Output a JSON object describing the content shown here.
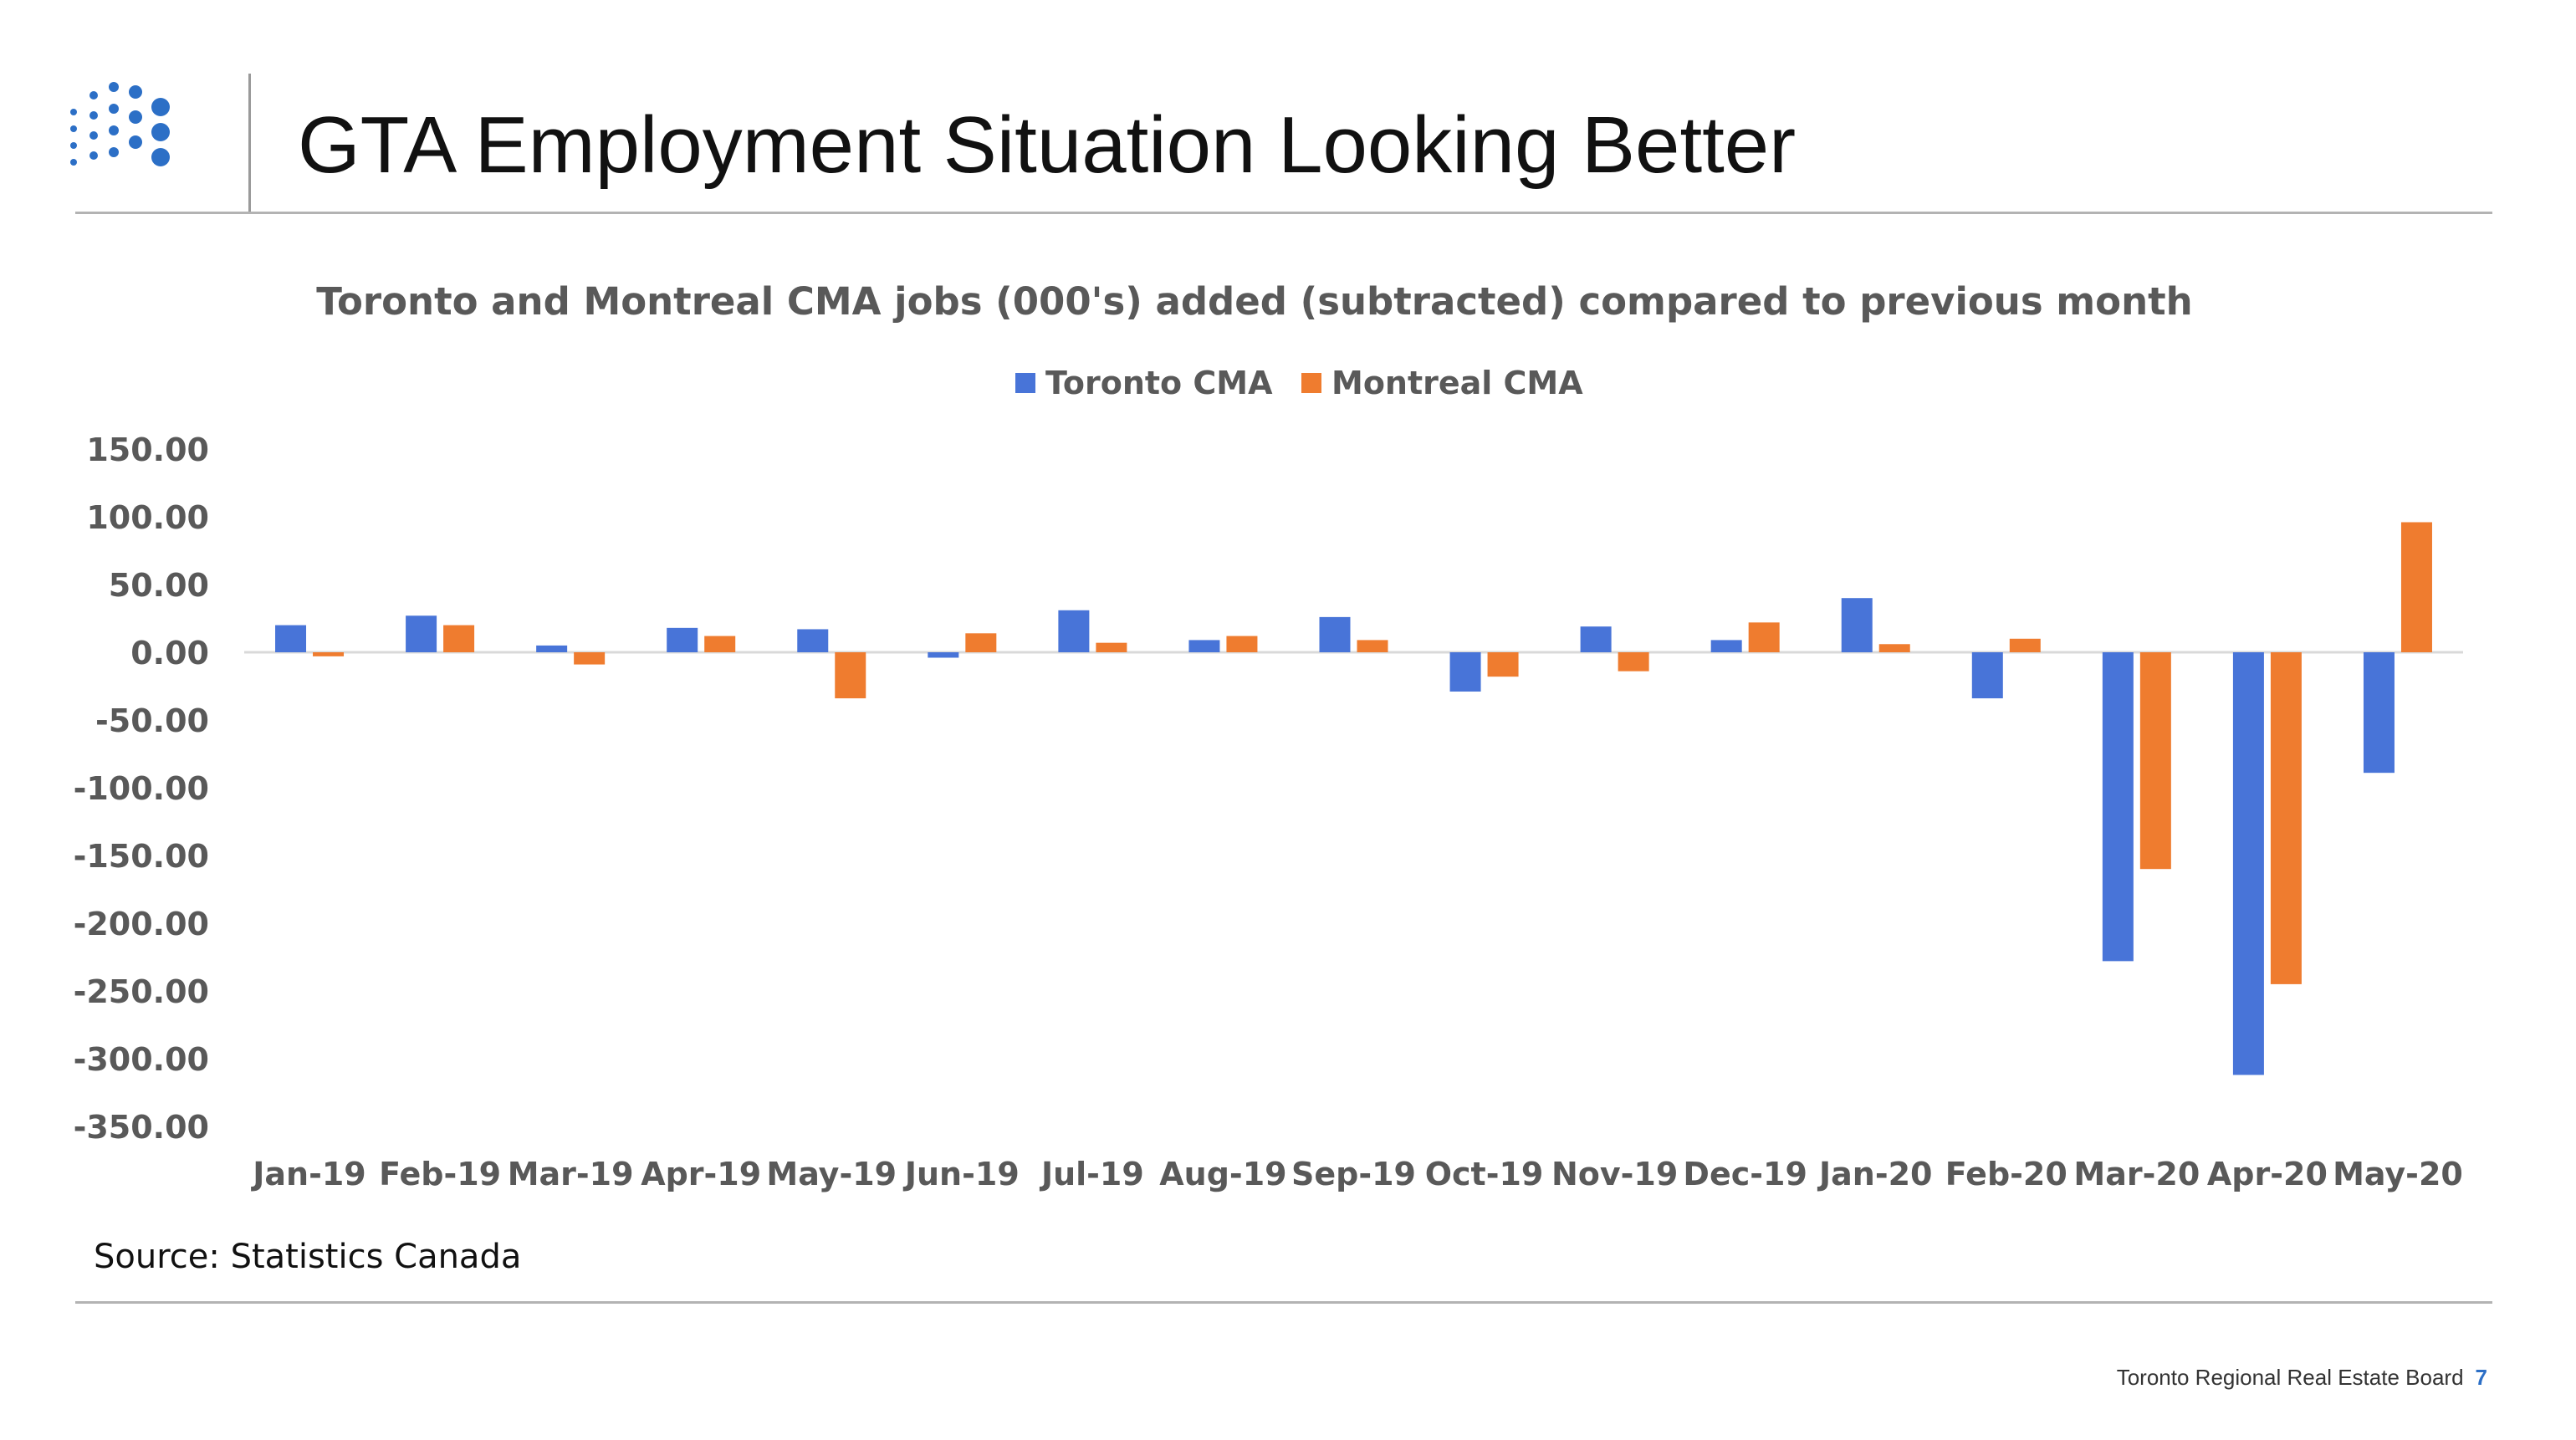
{
  "slide": {
    "title": "GTA Employment Situation Looking Better",
    "source": "Source: Statistics Canada",
    "footer": "Toronto Regional Real Estate Board",
    "page_number": "7",
    "logo_icon": "dot-grid-logo-icon"
  },
  "colors": {
    "toronto": "#4874d8",
    "montreal": "#ef7c2f",
    "axis_text": "#595959",
    "logo": "#2c6fc6"
  },
  "chart_data": {
    "type": "bar",
    "title": "Toronto and Montreal CMA jobs (000's) added (subtracted) compared to previous month",
    "xlabel": "",
    "ylabel": "",
    "ylim": [
      -350,
      150
    ],
    "yticks": [
      "150.00",
      "100.00",
      "50.00",
      "0.00",
      "-50.00",
      "-100.00",
      "-150.00",
      "-200.00",
      "-250.00",
      "-300.00",
      "-350.00"
    ],
    "grid": false,
    "legend_position": "top",
    "categories": [
      "Jan-19",
      "Feb-19",
      "Mar-19",
      "Apr-19",
      "May-19",
      "Jun-19",
      "Jul-19",
      "Aug-19",
      "Sep-19",
      "Oct-19",
      "Nov-19",
      "Dec-19",
      "Jan-20",
      "Feb-20",
      "Mar-20",
      "Apr-20",
      "May-20"
    ],
    "series": [
      {
        "name": "Toronto CMA",
        "values": [
          20,
          27,
          5,
          18,
          17,
          -4,
          31,
          9,
          26,
          -29,
          19,
          9,
          40,
          -34,
          -228,
          -312,
          -89
        ]
      },
      {
        "name": "Montreal CMA",
        "values": [
          -3,
          20,
          -9,
          12,
          -34,
          14,
          7,
          12,
          9,
          -18,
          -14,
          22,
          6,
          10,
          -160,
          -245,
          96
        ]
      }
    ]
  }
}
